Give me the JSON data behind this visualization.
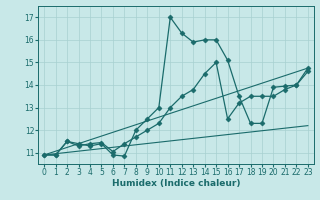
{
  "xlabel": "Humidex (Indice chaleur)",
  "background_color": "#c8e8e8",
  "line_color": "#1a6b6b",
  "grid_color": "#a8d0d0",
  "xlim": [
    -0.5,
    23.5
  ],
  "ylim": [
    10.5,
    17.5
  ],
  "xticks": [
    0,
    1,
    2,
    3,
    4,
    5,
    6,
    7,
    8,
    9,
    10,
    11,
    12,
    13,
    14,
    15,
    16,
    17,
    18,
    19,
    20,
    21,
    22,
    23
  ],
  "yticks": [
    11,
    12,
    13,
    14,
    15,
    16,
    17
  ],
  "series": [
    {
      "x": [
        0,
        1,
        2,
        3,
        4,
        5,
        6,
        7,
        8,
        9,
        10,
        11,
        12,
        13,
        14,
        15,
        16,
        17,
        18,
        19,
        20,
        21,
        22,
        23
      ],
      "y": [
        10.9,
        10.9,
        11.5,
        11.4,
        11.3,
        11.4,
        10.9,
        10.85,
        12.0,
        12.5,
        13.0,
        17.0,
        16.3,
        15.9,
        16.0,
        16.0,
        15.1,
        13.5,
        12.3,
        12.3,
        13.9,
        13.95,
        14.0,
        14.75
      ],
      "marker": "D",
      "markersize": 2.5,
      "linewidth": 0.9
    },
    {
      "x": [
        0,
        1,
        2,
        3,
        4,
        5,
        6,
        7,
        8,
        9,
        10,
        11,
        12,
        13,
        14,
        15,
        16,
        17,
        18,
        19,
        20,
        21,
        22,
        23
      ],
      "y": [
        10.9,
        10.9,
        11.5,
        11.3,
        11.4,
        11.45,
        11.05,
        11.4,
        11.7,
        12.0,
        12.3,
        13.0,
        13.5,
        13.8,
        14.5,
        15.0,
        12.5,
        13.2,
        13.5,
        13.5,
        13.5,
        13.8,
        14.0,
        14.6
      ],
      "marker": "D",
      "markersize": 2.5,
      "linewidth": 0.9
    },
    {
      "x": [
        0,
        23
      ],
      "y": [
        10.9,
        12.2
      ],
      "marker": null,
      "markersize": 0,
      "linewidth": 0.8
    },
    {
      "x": [
        0,
        23
      ],
      "y": [
        10.9,
        14.75
      ],
      "marker": null,
      "markersize": 0,
      "linewidth": 0.8
    }
  ]
}
